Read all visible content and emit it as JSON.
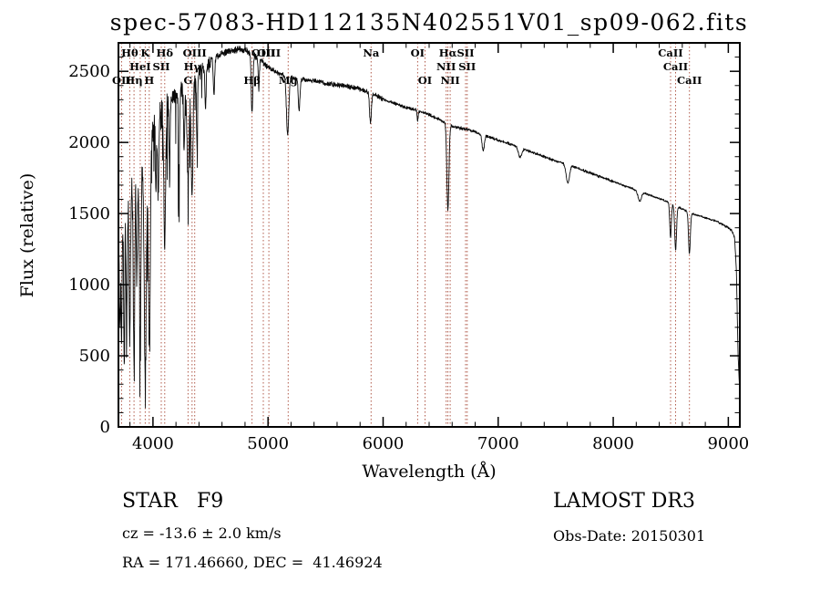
{
  "title": "spec-57083-HD112135N402551V01_sp09-062.fits",
  "axes": {
    "xlabel": "Wavelength (Å)",
    "ylabel": "Flux (relative)"
  },
  "annotations": {
    "class_label": "STAR   F9",
    "cz": "cz = -13.6 ± 2.0 km/s",
    "radec": "RA = 171.46660, DEC =  41.46924",
    "survey": "LAMOST DR3",
    "obs_date": "Obs-Date: 20150301"
  },
  "colors": {
    "marker_line": "#b05a4a",
    "marker_label": "#7a1e1e",
    "spectrum": "#0a0a0a",
    "axis": "#000000",
    "background": "#ffffff"
  },
  "chart_data": {
    "type": "line",
    "title": "spec-57083-HD112135N402551V01_sp09-062.fits",
    "xlabel": "Wavelength (Å)",
    "ylabel": "Flux (relative)",
    "xlim": [
      3700,
      9100
    ],
    "ylim": [
      0,
      2700
    ],
    "xticks": [
      4000,
      5000,
      6000,
      7000,
      8000,
      9000
    ],
    "yticks": [
      0,
      500,
      1000,
      1500,
      2000,
      2500
    ],
    "x_minor_step": 200,
    "y_minor_step": 100,
    "grid": false,
    "seed": 13,
    "sampling_step": 2,
    "noise_regions": [
      [
        3700,
        4150,
        135
      ],
      [
        4150,
        4500,
        65
      ],
      [
        4500,
        5000,
        28
      ],
      [
        5000,
        6000,
        20
      ],
      [
        6000,
        7000,
        14
      ],
      [
        7000,
        8000,
        11
      ],
      [
        8000,
        9105,
        9
      ]
    ],
    "blue_spikes": {
      "max_wavelength": 4430,
      "probability": 0.09,
      "max_depth": 520,
      "bias_below": 4500,
      "bias": 0.25
    },
    "continuum_anchors": [
      [
        3700,
        1450
      ],
      [
        3760,
        1600
      ],
      [
        3820,
        1720
      ],
      [
        3880,
        1820
      ],
      [
        3940,
        1960
      ],
      [
        4000,
        2120
      ],
      [
        4060,
        2230
      ],
      [
        4120,
        2300
      ],
      [
        4200,
        2360
      ],
      [
        4300,
        2430
      ],
      [
        4400,
        2520
      ],
      [
        4500,
        2580
      ],
      [
        4600,
        2625
      ],
      [
        4700,
        2650
      ],
      [
        4800,
        2655
      ],
      [
        4900,
        2600
      ],
      [
        5000,
        2530
      ],
      [
        5100,
        2480
      ],
      [
        5200,
        2455
      ],
      [
        5300,
        2440
      ],
      [
        5400,
        2435
      ],
      [
        5500,
        2415
      ],
      [
        5600,
        2405
      ],
      [
        5700,
        2395
      ],
      [
        5800,
        2375
      ],
      [
        5900,
        2345
      ],
      [
        6000,
        2305
      ],
      [
        6100,
        2275
      ],
      [
        6200,
        2245
      ],
      [
        6300,
        2225
      ],
      [
        6400,
        2195
      ],
      [
        6500,
        2155
      ],
      [
        6600,
        2115
      ],
      [
        6700,
        2095
      ],
      [
        6800,
        2075
      ],
      [
        6900,
        2045
      ],
      [
        7000,
        2015
      ],
      [
        7100,
        1990
      ],
      [
        7200,
        1960
      ],
      [
        7300,
        1930
      ],
      [
        7400,
        1900
      ],
      [
        7500,
        1870
      ],
      [
        7600,
        1845
      ],
      [
        7700,
        1815
      ],
      [
        7800,
        1785
      ],
      [
        7900,
        1755
      ],
      [
        8000,
        1725
      ],
      [
        8100,
        1695
      ],
      [
        8200,
        1665
      ],
      [
        8300,
        1635
      ],
      [
        8400,
        1605
      ],
      [
        8500,
        1572
      ],
      [
        8600,
        1532
      ],
      [
        8700,
        1495
      ],
      [
        8800,
        1470
      ],
      [
        8900,
        1445
      ],
      [
        9000,
        1400
      ],
      [
        9030,
        1380
      ],
      [
        9055,
        1330
      ],
      [
        9070,
        1100
      ],
      [
        9085,
        500
      ],
      [
        9100,
        230
      ]
    ],
    "absorption_lines": [
      {
        "wavelength": 3712,
        "depth": 700,
        "width": 5
      },
      {
        "wavelength": 3727,
        "depth": 800,
        "width": 5
      },
      {
        "wavelength": 3750,
        "depth": 1150,
        "width": 5
      },
      {
        "wavelength": 3771,
        "depth": 1000,
        "width": 5
      },
      {
        "wavelength": 3798,
        "depth": 1050,
        "width": 6
      },
      {
        "wavelength": 3835,
        "depth": 1250,
        "width": 6
      },
      {
        "wavelength": 3860,
        "depth": 700,
        "width": 5
      },
      {
        "wavelength": 3889,
        "depth": 1150,
        "width": 7
      },
      {
        "wavelength": 3933,
        "depth": 1550,
        "width": 9
      },
      {
        "wavelength": 3968,
        "depth": 1400,
        "width": 9
      },
      {
        "wavelength": 4026,
        "depth": 450,
        "width": 5
      },
      {
        "wavelength": 4045,
        "depth": 550,
        "width": 5
      },
      {
        "wavelength": 4102,
        "depth": 950,
        "width": 8
      },
      {
        "wavelength": 4144,
        "depth": 500,
        "width": 5
      },
      {
        "wavelength": 4226,
        "depth": 600,
        "width": 5
      },
      {
        "wavelength": 4271,
        "depth": 450,
        "width": 5
      },
      {
        "wavelength": 4305,
        "depth": 700,
        "width": 9
      },
      {
        "wavelength": 4340,
        "depth": 820,
        "width": 8
      },
      {
        "wavelength": 4383,
        "depth": 520,
        "width": 5
      },
      {
        "wavelength": 4457,
        "depth": 300,
        "width": 5
      },
      {
        "wavelength": 4530,
        "depth": 250,
        "width": 6
      },
      {
        "wavelength": 4861,
        "depth": 420,
        "width": 7
      },
      {
        "wavelength": 4920,
        "depth": 200,
        "width": 5
      },
      {
        "wavelength": 5170,
        "depth": 400,
        "width": 10
      },
      {
        "wavelength": 5270,
        "depth": 230,
        "width": 7
      },
      {
        "wavelength": 5890,
        "depth": 210,
        "width": 8
      },
      {
        "wavelength": 6300,
        "depth": 70,
        "width": 5
      },
      {
        "wavelength": 6563,
        "depth": 600,
        "width": 9
      },
      {
        "wavelength": 6870,
        "depth": 110,
        "width": 10
      },
      {
        "wavelength": 7190,
        "depth": 70,
        "width": 14
      },
      {
        "wavelength": 7605,
        "depth": 130,
        "width": 14
      },
      {
        "wavelength": 8230,
        "depth": 70,
        "width": 14
      },
      {
        "wavelength": 8498,
        "depth": 240,
        "width": 7
      },
      {
        "wavelength": 8542,
        "depth": 310,
        "width": 8
      },
      {
        "wavelength": 8662,
        "depth": 290,
        "width": 8
      }
    ],
    "line_markers": [
      {
        "label": "OII",
        "wavelength": 3727,
        "row": 3
      },
      {
        "label": "Hθ",
        "wavelength": 3798,
        "row": 1
      },
      {
        "label": "Hη",
        "wavelength": 3835,
        "row": 3
      },
      {
        "label": "HeI",
        "wavelength": 3889,
        "row": 2
      },
      {
        "label": "K",
        "wavelength": 3933,
        "row": 1
      },
      {
        "label": "H",
        "wavelength": 3968,
        "row": 3
      },
      {
        "label": "SII",
        "wavelength": 4072,
        "row": 2
      },
      {
        "label": "Hδ",
        "wavelength": 4102,
        "row": 1
      },
      {
        "label": "G",
        "wavelength": 4305,
        "row": 3
      },
      {
        "label": "Hγ",
        "wavelength": 4340,
        "row": 2
      },
      {
        "label": "OIII",
        "wavelength": 4363,
        "row": 1
      },
      {
        "label": "Hβ",
        "wavelength": 4861,
        "row": 3
      },
      {
        "label": "OIII",
        "wavelength": 4959,
        "row": 1
      },
      {
        "label": "OIII",
        "wavelength": 5007,
        "row": 1
      },
      {
        "label": "Mg",
        "wavelength": 5175,
        "row": 3
      },
      {
        "label": "Na",
        "wavelength": 5896,
        "row": 1
      },
      {
        "label": "OI",
        "wavelength": 6300,
        "row": 1
      },
      {
        "label": "OI",
        "wavelength": 6364,
        "row": 3
      },
      {
        "label": "NII",
        "wavelength": 6548,
        "row": 2
      },
      {
        "label": "Hα",
        "wavelength": 6563,
        "row": 1
      },
      {
        "label": "NII",
        "wavelength": 6583,
        "row": 3
      },
      {
        "label": "SII",
        "wavelength": 6717,
        "row": 1
      },
      {
        "label": "SII",
        "wavelength": 6731,
        "row": 2
      },
      {
        "label": "CaII",
        "wavelength": 8498,
        "row": 1
      },
      {
        "label": "CaII",
        "wavelength": 8542,
        "row": 2
      },
      {
        "label": "CaII",
        "wavelength": 8662,
        "row": 3
      }
    ]
  }
}
